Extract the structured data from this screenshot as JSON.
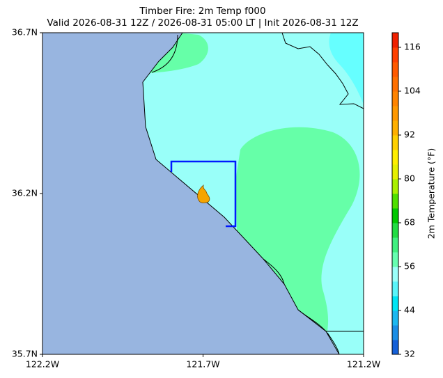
{
  "title": "Timber Fire: 2m Temp f000",
  "subtitle": "Valid 2026-08-31 12Z / 2026-08-31 05:00 LT | Init 2026-08-31 12Z",
  "map": {
    "xlim": [
      -122.2,
      -121.2
    ],
    "ylim": [
      35.7,
      36.7
    ],
    "xticks": [
      {
        "value": -122.2,
        "label": "122.2W"
      },
      {
        "value": -121.7,
        "label": "121.7W"
      },
      {
        "value": -121.2,
        "label": "121.2W"
      }
    ],
    "yticks": [
      {
        "value": 35.7,
        "label": "35.7N"
      },
      {
        "value": 36.2,
        "label": "36.2N"
      },
      {
        "value": 36.7,
        "label": "36.7N"
      }
    ]
  },
  "colorbar": {
    "label": "2m Temperature (°F)",
    "lim": [
      32,
      120
    ],
    "ticks": [
      32,
      44,
      56,
      68,
      80,
      92,
      104,
      116
    ],
    "levels": [
      32,
      36,
      40,
      44,
      48,
      52,
      56,
      60,
      64,
      68,
      72,
      76,
      80,
      84,
      88,
      92,
      96,
      100,
      104,
      108,
      112,
      116,
      120
    ],
    "colors": [
      "#1560d8",
      "#1a8ee6",
      "#1cb8f0",
      "#00e5f5",
      "#5af5fa",
      "#9afff9",
      "#66ffb0",
      "#40f080",
      "#22dd44",
      "#00c800",
      "#50e000",
      "#aaf000",
      "#e6f000",
      "#ffee00",
      "#ffd000",
      "#ffb000",
      "#ff9800",
      "#ff8400",
      "#ff7000",
      "#ff5a00",
      "#ff4000",
      "#f02000"
    ]
  }
}
